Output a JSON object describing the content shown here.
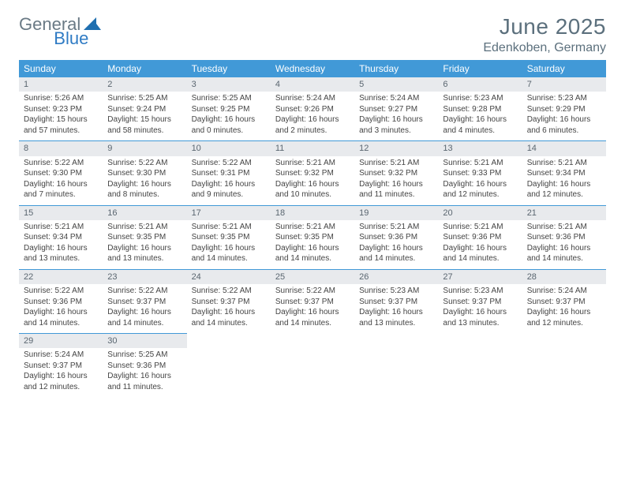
{
  "logo": {
    "text1": "General",
    "text2": "Blue"
  },
  "header": {
    "month_title": "June 2025",
    "location": "Edenkoben, Germany"
  },
  "colors": {
    "header_bg": "#4199d7",
    "header_text": "#ffffff",
    "daynum_bg": "#e8eaed",
    "daynum_text": "#5a6670",
    "body_text": "#444444",
    "title_text": "#5c707d",
    "row_border": "#4199d7"
  },
  "weekdays": [
    "Sunday",
    "Monday",
    "Tuesday",
    "Wednesday",
    "Thursday",
    "Friday",
    "Saturday"
  ],
  "weeks": [
    [
      {
        "day": "1",
        "sunrise": "5:26 AM",
        "sunset": "9:23 PM",
        "daylight": "15 hours and 57 minutes."
      },
      {
        "day": "2",
        "sunrise": "5:25 AM",
        "sunset": "9:24 PM",
        "daylight": "15 hours and 58 minutes."
      },
      {
        "day": "3",
        "sunrise": "5:25 AM",
        "sunset": "9:25 PM",
        "daylight": "16 hours and 0 minutes."
      },
      {
        "day": "4",
        "sunrise": "5:24 AM",
        "sunset": "9:26 PM",
        "daylight": "16 hours and 2 minutes."
      },
      {
        "day": "5",
        "sunrise": "5:24 AM",
        "sunset": "9:27 PM",
        "daylight": "16 hours and 3 minutes."
      },
      {
        "day": "6",
        "sunrise": "5:23 AM",
        "sunset": "9:28 PM",
        "daylight": "16 hours and 4 minutes."
      },
      {
        "day": "7",
        "sunrise": "5:23 AM",
        "sunset": "9:29 PM",
        "daylight": "16 hours and 6 minutes."
      }
    ],
    [
      {
        "day": "8",
        "sunrise": "5:22 AM",
        "sunset": "9:30 PM",
        "daylight": "16 hours and 7 minutes."
      },
      {
        "day": "9",
        "sunrise": "5:22 AM",
        "sunset": "9:30 PM",
        "daylight": "16 hours and 8 minutes."
      },
      {
        "day": "10",
        "sunrise": "5:22 AM",
        "sunset": "9:31 PM",
        "daylight": "16 hours and 9 minutes."
      },
      {
        "day": "11",
        "sunrise": "5:21 AM",
        "sunset": "9:32 PM",
        "daylight": "16 hours and 10 minutes."
      },
      {
        "day": "12",
        "sunrise": "5:21 AM",
        "sunset": "9:32 PM",
        "daylight": "16 hours and 11 minutes."
      },
      {
        "day": "13",
        "sunrise": "5:21 AM",
        "sunset": "9:33 PM",
        "daylight": "16 hours and 12 minutes."
      },
      {
        "day": "14",
        "sunrise": "5:21 AM",
        "sunset": "9:34 PM",
        "daylight": "16 hours and 12 minutes."
      }
    ],
    [
      {
        "day": "15",
        "sunrise": "5:21 AM",
        "sunset": "9:34 PM",
        "daylight": "16 hours and 13 minutes."
      },
      {
        "day": "16",
        "sunrise": "5:21 AM",
        "sunset": "9:35 PM",
        "daylight": "16 hours and 13 minutes."
      },
      {
        "day": "17",
        "sunrise": "5:21 AM",
        "sunset": "9:35 PM",
        "daylight": "16 hours and 14 minutes."
      },
      {
        "day": "18",
        "sunrise": "5:21 AM",
        "sunset": "9:35 PM",
        "daylight": "16 hours and 14 minutes."
      },
      {
        "day": "19",
        "sunrise": "5:21 AM",
        "sunset": "9:36 PM",
        "daylight": "16 hours and 14 minutes."
      },
      {
        "day": "20",
        "sunrise": "5:21 AM",
        "sunset": "9:36 PM",
        "daylight": "16 hours and 14 minutes."
      },
      {
        "day": "21",
        "sunrise": "5:21 AM",
        "sunset": "9:36 PM",
        "daylight": "16 hours and 14 minutes."
      }
    ],
    [
      {
        "day": "22",
        "sunrise": "5:22 AM",
        "sunset": "9:36 PM",
        "daylight": "16 hours and 14 minutes."
      },
      {
        "day": "23",
        "sunrise": "5:22 AM",
        "sunset": "9:37 PM",
        "daylight": "16 hours and 14 minutes."
      },
      {
        "day": "24",
        "sunrise": "5:22 AM",
        "sunset": "9:37 PM",
        "daylight": "16 hours and 14 minutes."
      },
      {
        "day": "25",
        "sunrise": "5:22 AM",
        "sunset": "9:37 PM",
        "daylight": "16 hours and 14 minutes."
      },
      {
        "day": "26",
        "sunrise": "5:23 AM",
        "sunset": "9:37 PM",
        "daylight": "16 hours and 13 minutes."
      },
      {
        "day": "27",
        "sunrise": "5:23 AM",
        "sunset": "9:37 PM",
        "daylight": "16 hours and 13 minutes."
      },
      {
        "day": "28",
        "sunrise": "5:24 AM",
        "sunset": "9:37 PM",
        "daylight": "16 hours and 12 minutes."
      }
    ],
    [
      {
        "day": "29",
        "sunrise": "5:24 AM",
        "sunset": "9:37 PM",
        "daylight": "16 hours and 12 minutes."
      },
      {
        "day": "30",
        "sunrise": "5:25 AM",
        "sunset": "9:36 PM",
        "daylight": "16 hours and 11 minutes."
      },
      null,
      null,
      null,
      null,
      null
    ]
  ],
  "labels": {
    "sunrise": "Sunrise:",
    "sunset": "Sunset:",
    "daylight": "Daylight:"
  }
}
